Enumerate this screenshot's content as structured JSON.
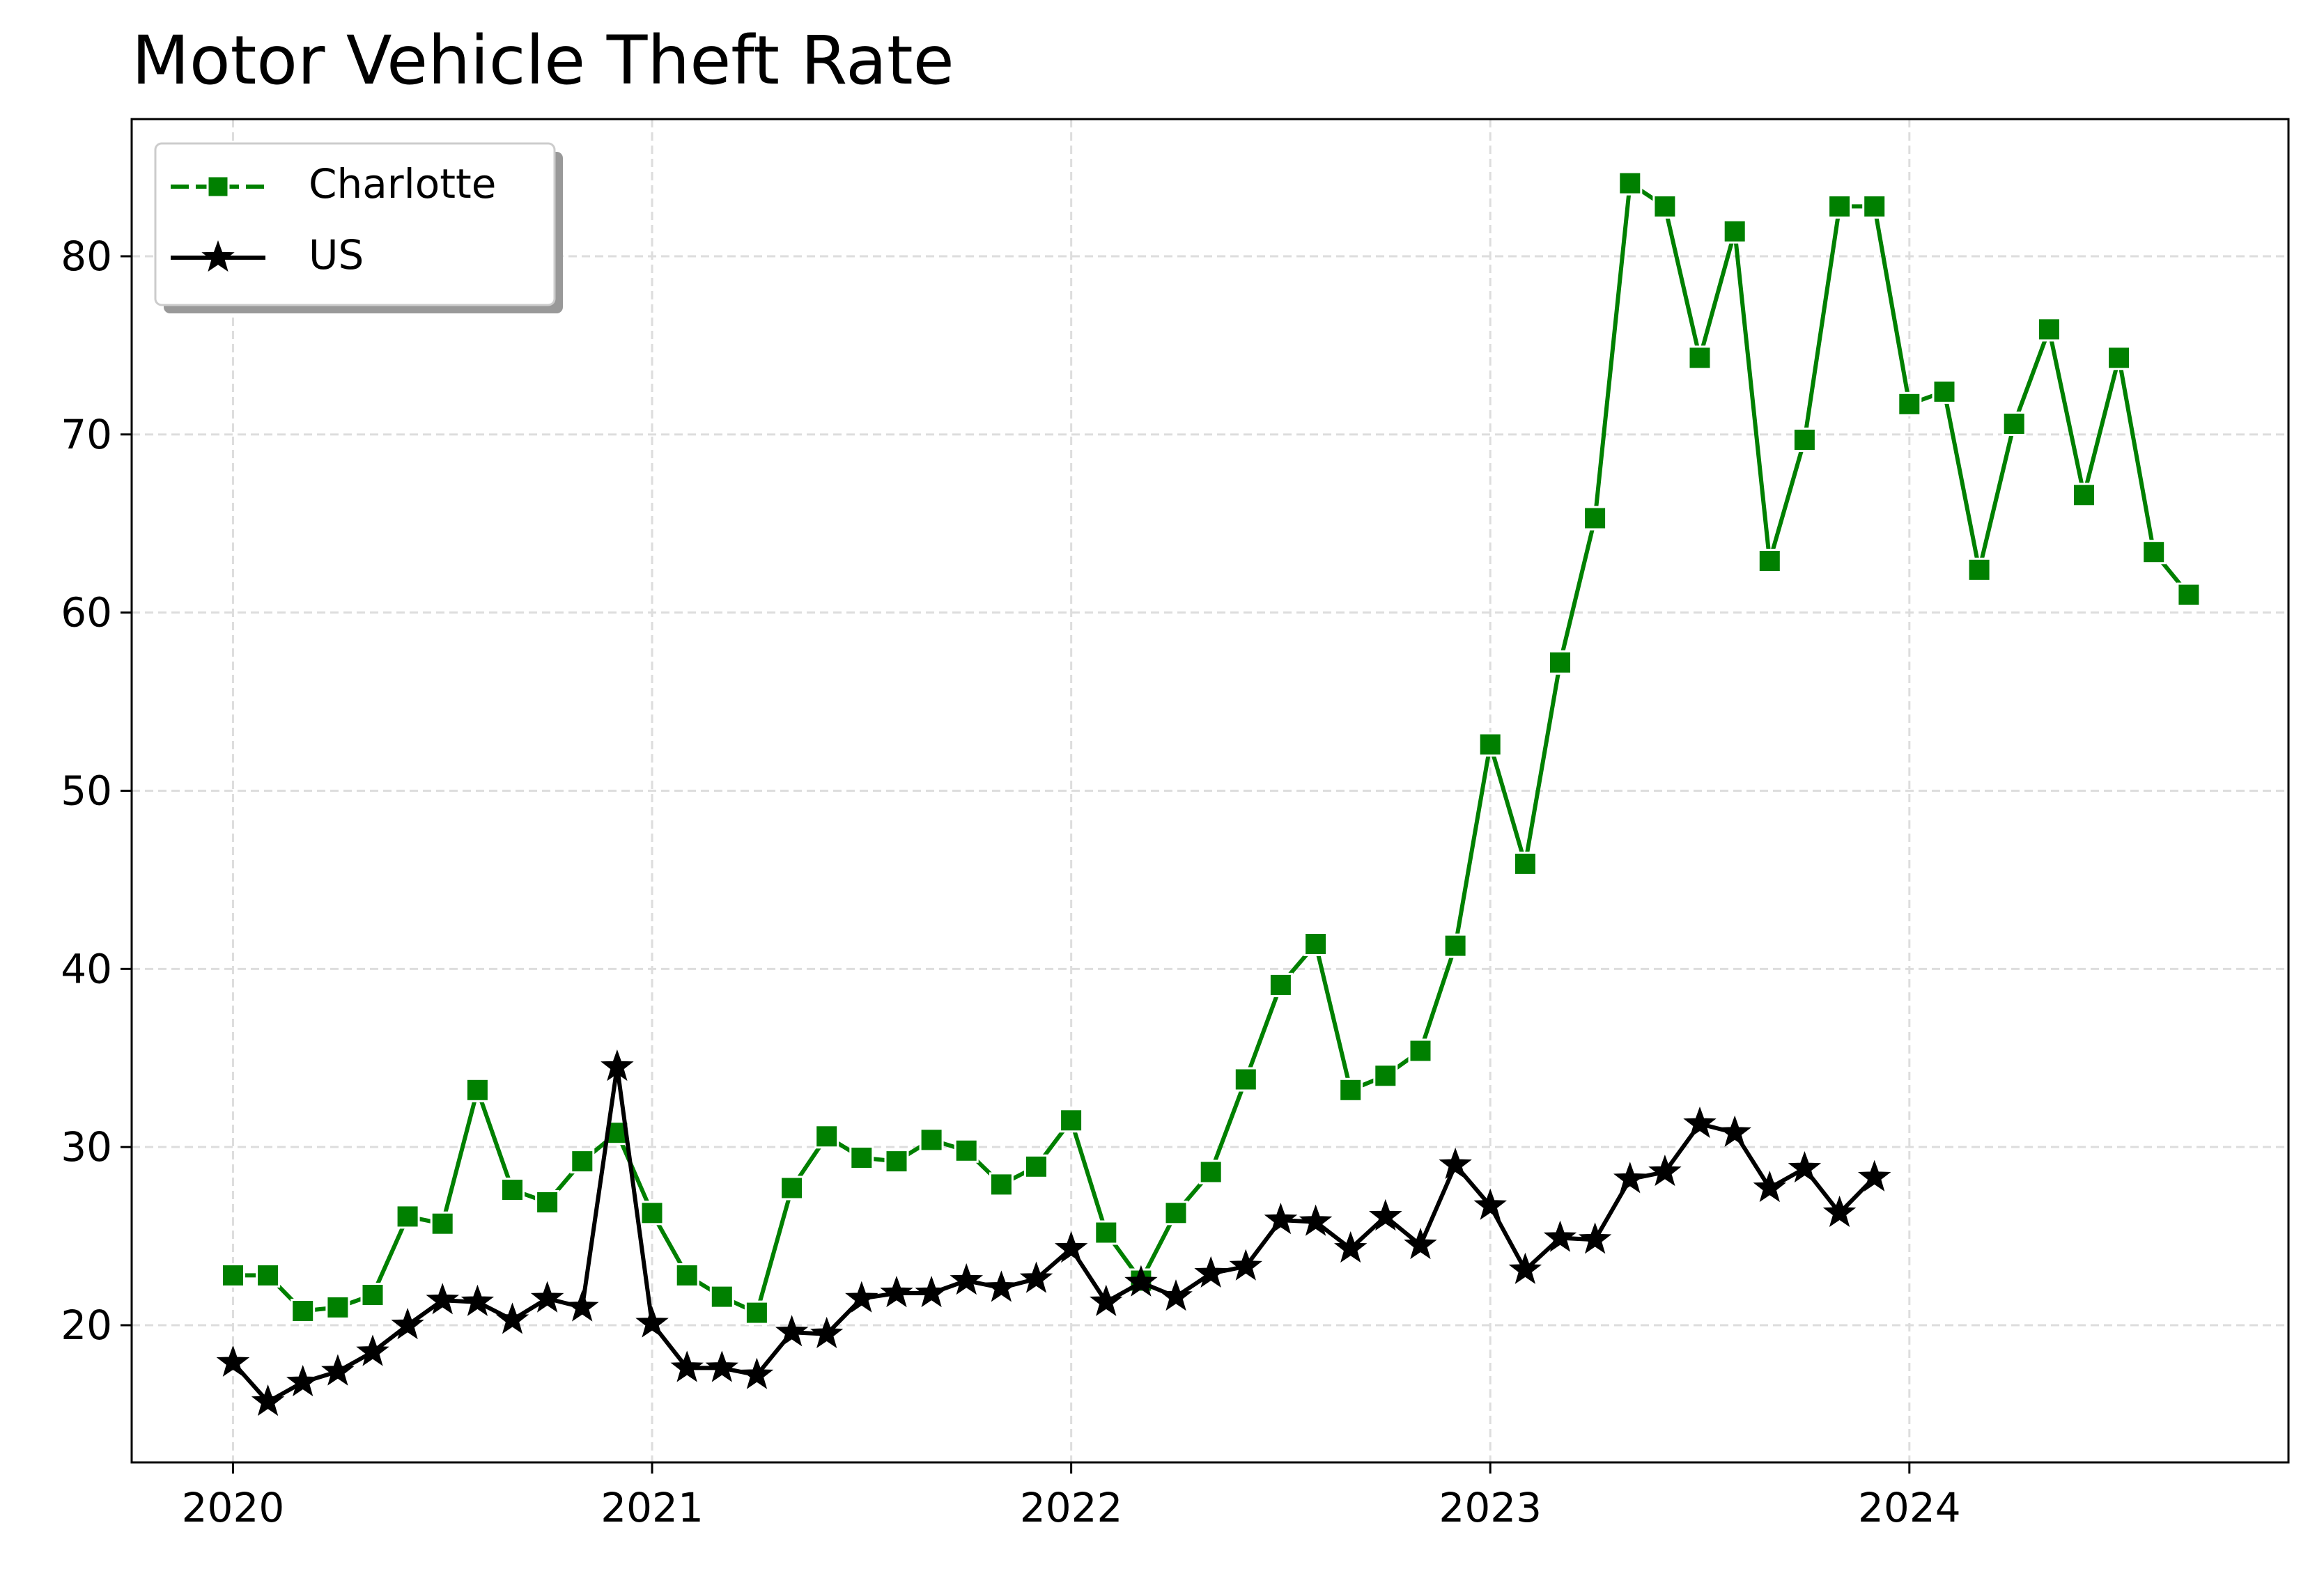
{
  "chart_data": {
    "type": "line",
    "title": "Motor Vehicle Theft Rate",
    "xlabel": "",
    "ylabel": "",
    "xlim": [
      "2019-10-04",
      "2024-11-27"
    ],
    "ylim": [
      12.3,
      87.7
    ],
    "x_ticks": [
      "2020",
      "2021",
      "2022",
      "2023",
      "2024"
    ],
    "y_ticks": [
      20,
      30,
      40,
      50,
      60,
      70,
      80
    ],
    "grid": true,
    "legend_position": "top-left",
    "series": [
      {
        "name": "Charlotte",
        "color": "#008000",
        "marker": "square",
        "line_style": "dashed-solid",
        "x": [
          "2020-01",
          "2020-02",
          "2020-03",
          "2020-04",
          "2020-05",
          "2020-06",
          "2020-07",
          "2020-08",
          "2020-09",
          "2020-10",
          "2020-11",
          "2020-12",
          "2021-01",
          "2021-02",
          "2021-03",
          "2021-04",
          "2021-05",
          "2021-06",
          "2021-07",
          "2021-08",
          "2021-09",
          "2021-10",
          "2021-11",
          "2021-12",
          "2022-01",
          "2022-02",
          "2022-03",
          "2022-04",
          "2022-05",
          "2022-06",
          "2022-07",
          "2022-08",
          "2022-09",
          "2022-10",
          "2022-11",
          "2022-12",
          "2023-01",
          "2023-02",
          "2023-03",
          "2023-04",
          "2023-05",
          "2023-06",
          "2023-07",
          "2023-08",
          "2023-09",
          "2023-10",
          "2023-11",
          "2023-12",
          "2024-01",
          "2024-02",
          "2024-03",
          "2024-04",
          "2024-05",
          "2024-06",
          "2024-07",
          "2024-08",
          "2024-09"
        ],
        "values": [
          22.8,
          22.8,
          20.8,
          21.0,
          21.7,
          26.1,
          25.7,
          33.2,
          27.6,
          26.9,
          29.2,
          30.8,
          26.3,
          22.8,
          21.6,
          20.7,
          27.7,
          30.6,
          29.4,
          29.2,
          30.4,
          29.8,
          27.9,
          28.9,
          31.5,
          25.2,
          22.5,
          26.3,
          28.6,
          33.8,
          39.1,
          41.4,
          33.2,
          34.0,
          35.4,
          41.3,
          52.6,
          45.9,
          57.2,
          65.3,
          84.1,
          82.8,
          74.3,
          81.4,
          62.9,
          69.7,
          82.8,
          82.8,
          71.7,
          72.4,
          62.4,
          70.6,
          75.9,
          66.6,
          74.3,
          63.4,
          61.0
        ]
      },
      {
        "name": "US",
        "color": "#000000",
        "marker": "star",
        "line_style": "solid",
        "x": [
          "2020-01",
          "2020-02",
          "2020-03",
          "2020-04",
          "2020-05",
          "2020-06",
          "2020-07",
          "2020-08",
          "2020-09",
          "2020-10",
          "2020-11",
          "2020-12",
          "2021-01",
          "2021-02",
          "2021-03",
          "2021-04",
          "2021-05",
          "2021-06",
          "2021-07",
          "2021-08",
          "2021-09",
          "2021-10",
          "2021-11",
          "2021-12",
          "2022-01",
          "2022-02",
          "2022-03",
          "2022-04",
          "2022-05",
          "2022-06",
          "2022-07",
          "2022-08",
          "2022-09",
          "2022-10",
          "2022-11",
          "2022-12",
          "2023-01",
          "2023-02",
          "2023-03",
          "2023-04",
          "2023-05",
          "2023-06",
          "2023-07",
          "2023-08",
          "2023-09",
          "2023-10",
          "2023-11",
          "2023-12"
        ],
        "values": [
          17.9,
          15.7,
          16.8,
          17.4,
          18.5,
          20.0,
          21.4,
          21.3,
          20.3,
          21.5,
          21.0,
          34.5,
          20.1,
          17.6,
          17.6,
          17.2,
          19.6,
          19.5,
          21.5,
          21.8,
          21.8,
          22.5,
          22.1,
          22.6,
          24.3,
          21.3,
          22.4,
          21.6,
          22.9,
          23.3,
          25.9,
          25.8,
          24.3,
          26.1,
          24.5,
          29.0,
          26.7,
          23.1,
          24.9,
          24.8,
          28.2,
          28.6,
          31.3,
          30.8,
          27.7,
          28.8,
          26.3,
          28.3
        ]
      }
    ]
  }
}
